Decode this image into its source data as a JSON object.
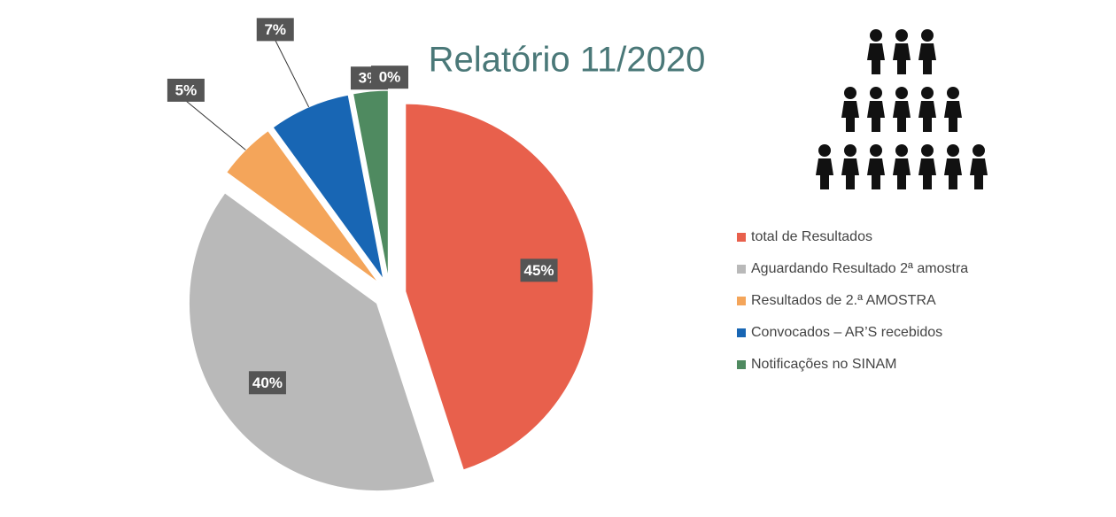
{
  "chart_data": {
    "type": "pie",
    "title": "Relatório 11/2020",
    "categories": [
      "total de  Resultados",
      "Aguardando Resultado 2ª amostra",
      "Resultados de 2.ª AMOSTRA",
      "Convocados – AR’S recebidos",
      "Notificações no SINAM",
      null
    ],
    "values": [
      45,
      40,
      5,
      7,
      3,
      0
    ],
    "value_labels": [
      "45%",
      "40%",
      "5%",
      "7%",
      "3%",
      "0%"
    ],
    "colors": [
      "#e8604c",
      "#b9b9b9",
      "#f4a55a",
      "#1866b4",
      "#4f8a60",
      "#8fb0d0"
    ],
    "legend": "right"
  }
}
